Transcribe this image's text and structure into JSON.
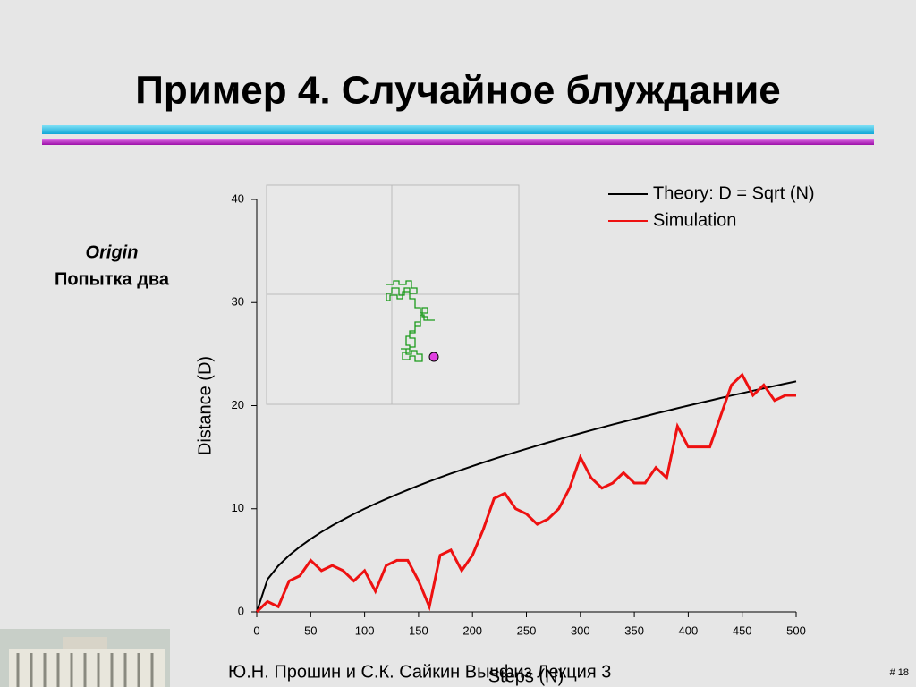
{
  "header": {
    "title": "Пример 4. Случайное блуждание"
  },
  "side_note": [
    "Origin",
    "Попытка два"
  ],
  "footer": {
    "authors": "Ю.Н. Прошин и С.К. Сайкин Вычфиз Лекция 3",
    "page": "# 18"
  },
  "chart_data": {
    "type": "line",
    "x_label": "Steps (N)",
    "y_label": "Distance (D)",
    "x": [
      0,
      10,
      20,
      30,
      40,
      50,
      60,
      70,
      80,
      90,
      100,
      110,
      120,
      130,
      140,
      150,
      160,
      170,
      180,
      190,
      200,
      210,
      220,
      230,
      240,
      250,
      260,
      270,
      280,
      290,
      300,
      310,
      320,
      330,
      340,
      350,
      360,
      370,
      380,
      390,
      400,
      410,
      420,
      430,
      440,
      450,
      460,
      470,
      480,
      490,
      500
    ],
    "series": [
      {
        "name": "Theory: D = Sqrt (N)",
        "color": "#000000",
        "values": [
          0,
          3.16,
          4.47,
          5.48,
          6.32,
          7.07,
          7.75,
          8.37,
          8.94,
          9.49,
          10,
          10.49,
          10.95,
          11.4,
          11.83,
          12.25,
          12.65,
          13.04,
          13.42,
          13.78,
          14.14,
          14.49,
          14.83,
          15.17,
          15.49,
          15.81,
          16.12,
          16.43,
          16.73,
          17.03,
          17.32,
          17.61,
          17.89,
          18.17,
          18.44,
          18.71,
          18.97,
          19.24,
          19.49,
          19.75,
          20,
          20.25,
          20.49,
          20.74,
          20.98,
          21.21,
          21.45,
          21.68,
          21.91,
          22.14,
          22.36
        ]
      },
      {
        "name": "Simulation",
        "color": "#ee1111",
        "values": [
          0,
          1,
          0.5,
          3,
          3.5,
          5,
          4,
          4.5,
          4,
          3,
          4,
          2,
          4.5,
          5,
          5,
          3,
          0.5,
          5.5,
          6,
          4,
          5.5,
          8,
          11,
          11.5,
          10,
          9.5,
          8.5,
          9,
          10,
          12,
          15,
          13,
          12,
          12.5,
          13.5,
          12.5,
          12.5,
          14,
          13,
          18,
          16,
          16,
          16,
          19,
          22,
          23,
          21,
          22,
          20.5,
          21,
          21
        ]
      }
    ],
    "xlim": [
      0,
      500
    ],
    "xticks": [
      0,
      50,
      100,
      150,
      200,
      250,
      300,
      350,
      400,
      450,
      500
    ],
    "ylim": [
      0,
      40
    ],
    "yticks": [
      0,
      10,
      20,
      30,
      40
    ],
    "legend": "top-right"
  }
}
